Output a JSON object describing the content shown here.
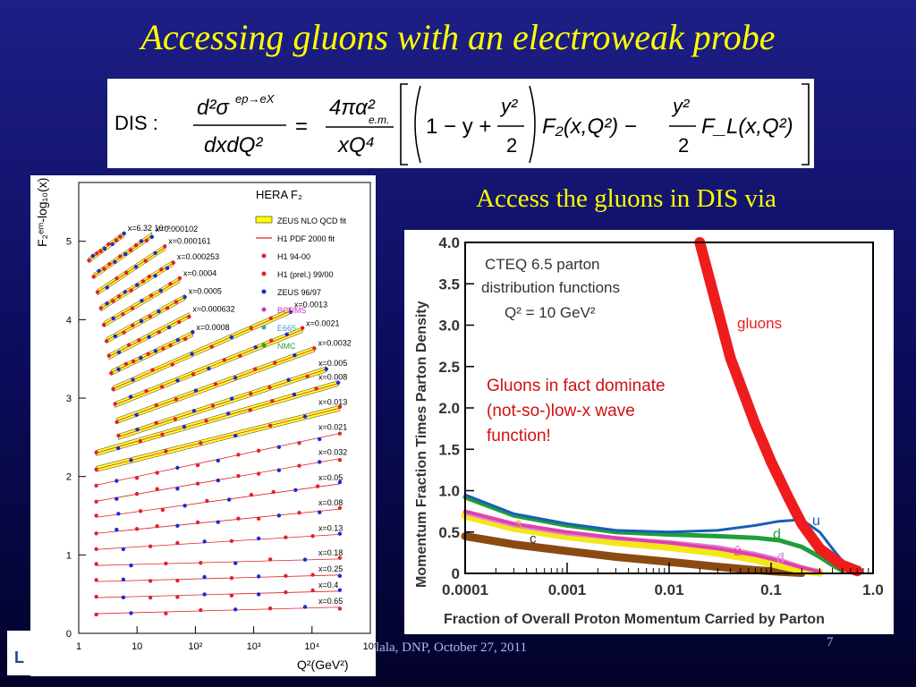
{
  "slide": {
    "title": "Accessing gluons with an electroweak probe",
    "access_text": "Access the gluons in DIS via",
    "footer": "lala, DNP, October 27, 2011",
    "slide_number": "7"
  },
  "equation": {
    "lhs_label": "DIS :",
    "numerator": "d²σ",
    "sup": "ep→eX",
    "denominator": "dxdQ²",
    "coef_num": "4πα²",
    "coef_sub": "e.m.",
    "coef_den": "xQ⁴",
    "term1": "1 − y +",
    "frac_num": "y²",
    "frac_den": "2",
    "f2": "F₂(x,Q²) −",
    "fl": "F_L(x,Q²)"
  },
  "hera_chart": {
    "title": "HERA  F₂",
    "ylabel": "F₂ᵉᵐ-log₁₀(x)",
    "xlabel": "Q²(GeV²)",
    "x_ticks": [
      "1",
      "10",
      "10²",
      "10³",
      "10⁴",
      "10⁵"
    ],
    "y_ticks": [
      "0",
      "1",
      "2",
      "3",
      "4",
      "5"
    ],
    "legend": [
      {
        "label": "ZEUS NLO QCD fit",
        "color": "#ffff00"
      },
      {
        "label": "H1 PDF 2000 fit",
        "color": "#e0222a"
      },
      {
        "label": "H1 94-00",
        "color": "#e0222a"
      },
      {
        "label": "H1 (prel.) 99/00",
        "color": "#e0222a"
      },
      {
        "label": "ZEUS 96/97",
        "color": "#1a2ad8"
      },
      {
        "label": "BCDMS",
        "color": "#d030d0"
      },
      {
        "label": "E665",
        "color": "#30a0d0"
      },
      {
        "label": "NMC",
        "color": "#30a030"
      }
    ],
    "x_labels": [
      "x=6.32 10⁻⁵",
      "x=0.000102",
      "x=0.000161",
      "x=0.000253",
      "x=0.0004",
      "x=0.0005",
      "x=0.000632",
      "x=0.0008",
      "x=0.0013",
      "x=0.0021",
      "x=0.0032",
      "x=0.005",
      "x=0.008",
      "x=0.013",
      "x=0.021",
      "x=0.032",
      "x=0.05",
      "x=0.08",
      "x=0.13",
      "x=0.18",
      "x=0.25",
      "x=0.4",
      "x=0.65"
    ]
  },
  "chart_data": {
    "type": "line",
    "title": "CTEQ 6.5 parton distribution functions",
    "subtitle": "Q² = 10 GeV²",
    "xlabel": "Fraction of Overall Proton Momentum Carried by Parton",
    "ylabel": "Momentum Fraction Times Parton Density",
    "xscale": "log",
    "xlim": [
      0.0001,
      1.0
    ],
    "ylim": [
      0,
      4.0
    ],
    "x_ticks": [
      "0.0001",
      "0.001",
      "0.01",
      "0.1",
      "1.0"
    ],
    "y_ticks": [
      "0",
      "0.5",
      "1.0",
      "1.5",
      "2.0",
      "2.5",
      "3.0",
      "3.5",
      "4.0"
    ],
    "annotation": "Gluons in fact dominate (not-so-)low-x wave function!",
    "series": [
      {
        "name": "gluons",
        "color": "#ee1c1c",
        "x": [
          0.02,
          0.04,
          0.07,
          0.1,
          0.15,
          0.2,
          0.3,
          0.5,
          0.7
        ],
        "y": [
          4.0,
          2.6,
          1.8,
          1.35,
          0.9,
          0.6,
          0.3,
          0.1,
          0.03
        ]
      },
      {
        "name": "u",
        "color": "#1a5fb4",
        "x": [
          0.0001,
          0.0003,
          0.001,
          0.003,
          0.01,
          0.03,
          0.07,
          0.12,
          0.2,
          0.3,
          0.4,
          0.5,
          0.7
        ],
        "y": [
          0.95,
          0.72,
          0.6,
          0.52,
          0.5,
          0.52,
          0.58,
          0.63,
          0.65,
          0.5,
          0.3,
          0.15,
          0.02
        ]
      },
      {
        "name": "d",
        "color": "#1f9e3a",
        "x": [
          0.0001,
          0.0003,
          0.001,
          0.003,
          0.01,
          0.03,
          0.07,
          0.12,
          0.2,
          0.3,
          0.4,
          0.5
        ],
        "y": [
          0.92,
          0.7,
          0.58,
          0.5,
          0.47,
          0.45,
          0.43,
          0.4,
          0.32,
          0.2,
          0.1,
          0.03
        ]
      },
      {
        "name": "s",
        "color": "#f5e61a",
        "x": [
          0.0001,
          0.0003,
          0.001,
          0.003,
          0.01,
          0.03,
          0.07,
          0.12,
          0.2,
          0.3
        ],
        "y": [
          0.7,
          0.55,
          0.45,
          0.38,
          0.32,
          0.25,
          0.17,
          0.1,
          0.04,
          0.01
        ]
      },
      {
        "name": "c",
        "color": "#8a4a12",
        "x": [
          0.0001,
          0.0003,
          0.001,
          0.003,
          0.01,
          0.03,
          0.07,
          0.12,
          0.2
        ],
        "y": [
          0.45,
          0.35,
          0.27,
          0.2,
          0.14,
          0.08,
          0.04,
          0.02,
          0.005
        ]
      },
      {
        "name": "ū",
        "color": "#e33fb0",
        "x": [
          0.0001,
          0.0003,
          0.001,
          0.003,
          0.01,
          0.03,
          0.07,
          0.12,
          0.2,
          0.3
        ],
        "y": [
          0.75,
          0.6,
          0.5,
          0.43,
          0.37,
          0.3,
          0.22,
          0.15,
          0.07,
          0.02
        ]
      },
      {
        "name": "d̄",
        "color": "#d98ad0",
        "x": [
          0.0001,
          0.0003,
          0.001,
          0.003,
          0.01,
          0.03,
          0.07,
          0.12,
          0.2,
          0.3
        ],
        "y": [
          0.73,
          0.58,
          0.48,
          0.42,
          0.38,
          0.32,
          0.24,
          0.17,
          0.08,
          0.02
        ]
      }
    ]
  }
}
